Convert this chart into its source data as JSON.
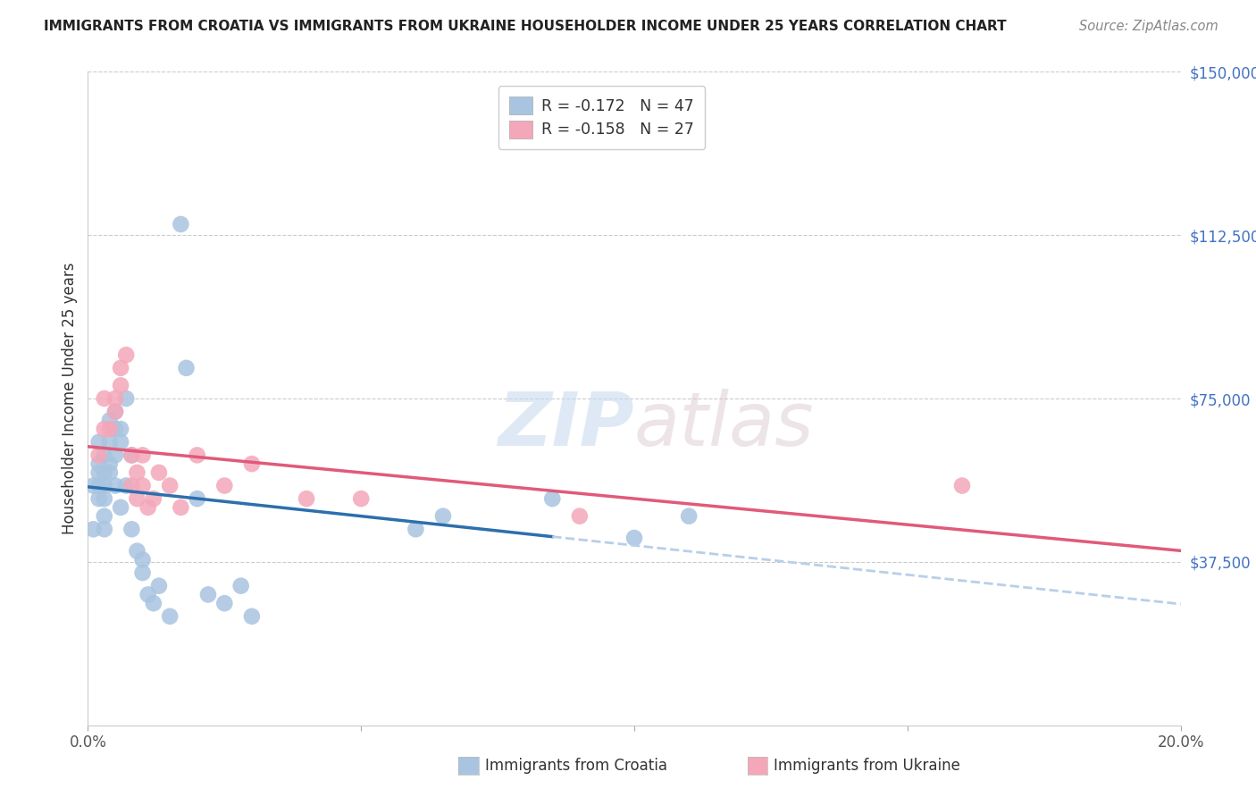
{
  "title": "IMMIGRANTS FROM CROATIA VS IMMIGRANTS FROM UKRAINE HOUSEHOLDER INCOME UNDER 25 YEARS CORRELATION CHART",
  "source": "Source: ZipAtlas.com",
  "ylabel": "Householder Income Under 25 years",
  "xlim": [
    0.0,
    0.2
  ],
  "ylim": [
    0,
    150000
  ],
  "yticks": [
    0,
    37500,
    75000,
    112500,
    150000
  ],
  "ytick_labels": [
    "",
    "$37,500",
    "$75,000",
    "$112,500",
    "$150,000"
  ],
  "xticks": [
    0.0,
    0.05,
    0.1,
    0.15,
    0.2
  ],
  "xtick_labels": [
    "0.0%",
    "",
    "",
    "",
    "20.0%"
  ],
  "croatia_color": "#a8c4e0",
  "ukraine_color": "#f4a7b9",
  "croatia_line_color": "#2c6fad",
  "ukraine_line_color": "#e05a7a",
  "dashed_line_color": "#b8cfe8",
  "legend_croatia_label": "R = -0.172   N = 47",
  "legend_ukraine_label": "R = -0.158   N = 27",
  "bottom_legend_croatia": "Immigrants from Croatia",
  "bottom_legend_ukraine": "Immigrants from Ukraine",
  "watermark_zip": "ZIP",
  "watermark_atlas": "atlas",
  "croatia_x": [
    0.001,
    0.001,
    0.002,
    0.002,
    0.002,
    0.002,
    0.002,
    0.003,
    0.003,
    0.003,
    0.003,
    0.003,
    0.003,
    0.004,
    0.004,
    0.004,
    0.004,
    0.005,
    0.005,
    0.005,
    0.005,
    0.006,
    0.006,
    0.006,
    0.007,
    0.007,
    0.008,
    0.008,
    0.009,
    0.01,
    0.01,
    0.011,
    0.012,
    0.013,
    0.015,
    0.017,
    0.018,
    0.02,
    0.022,
    0.025,
    0.028,
    0.03,
    0.06,
    0.065,
    0.085,
    0.1,
    0.11
  ],
  "croatia_y": [
    55000,
    45000,
    65000,
    60000,
    58000,
    55000,
    52000,
    62000,
    58000,
    55000,
    52000,
    48000,
    45000,
    70000,
    65000,
    60000,
    58000,
    72000,
    68000,
    62000,
    55000,
    68000,
    65000,
    50000,
    75000,
    55000,
    62000,
    45000,
    40000,
    38000,
    35000,
    30000,
    28000,
    32000,
    25000,
    115000,
    82000,
    52000,
    30000,
    28000,
    32000,
    25000,
    45000,
    48000,
    52000,
    43000,
    48000
  ],
  "ukraine_x": [
    0.002,
    0.003,
    0.003,
    0.004,
    0.005,
    0.005,
    0.006,
    0.006,
    0.007,
    0.008,
    0.008,
    0.009,
    0.009,
    0.01,
    0.01,
    0.011,
    0.012,
    0.013,
    0.015,
    0.017,
    0.02,
    0.025,
    0.03,
    0.04,
    0.05,
    0.09,
    0.16
  ],
  "ukraine_y": [
    62000,
    75000,
    68000,
    68000,
    75000,
    72000,
    82000,
    78000,
    85000,
    62000,
    55000,
    58000,
    52000,
    62000,
    55000,
    50000,
    52000,
    58000,
    55000,
    50000,
    62000,
    55000,
    60000,
    52000,
    52000,
    48000,
    55000
  ]
}
